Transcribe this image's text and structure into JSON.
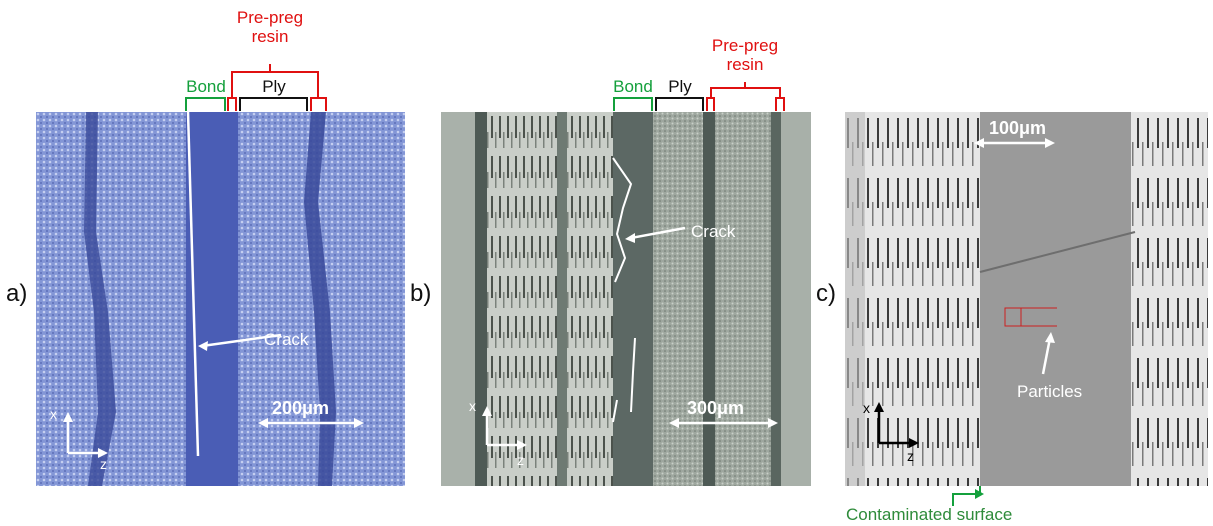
{
  "panel_labels": [
    "a)",
    "b)",
    "c)"
  ],
  "panel_a": {
    "top_labels": {
      "bond": "Bond",
      "ply": "Ply",
      "prepreg": "Pre-preg\nresin"
    },
    "crack": "Crack",
    "scale": "200μm",
    "axes": {
      "x": "x",
      "z": "z"
    }
  },
  "panel_b": {
    "top_labels": {
      "bond": "Bond",
      "ply": "Ply",
      "prepreg": "Pre-preg\nresin"
    },
    "crack": "Crack",
    "scale": "300μm",
    "axes": {
      "x": "x",
      "z": "z"
    }
  },
  "panel_c": {
    "scale": "100μm",
    "particles": "Particles",
    "axes": {
      "x": "x",
      "z": "z"
    },
    "caption": "Contaminated surface"
  },
  "colors": {
    "red": "#e01010",
    "green": "#14a03c",
    "black": "#111111"
  }
}
